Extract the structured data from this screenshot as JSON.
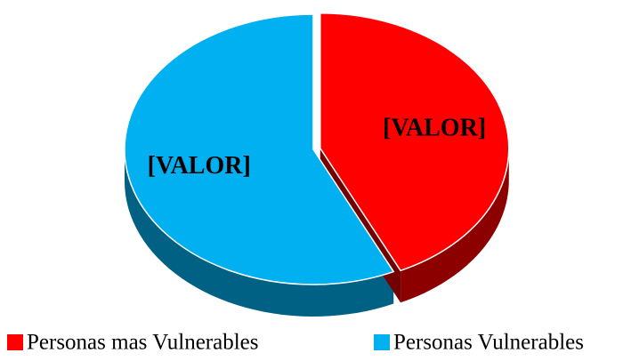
{
  "chart_data": {
    "type": "pie",
    "three_d": true,
    "categories": [
      "Personas mas Vulnerables",
      "Personas Vulnerables"
    ],
    "values": [
      43,
      57
    ],
    "value_labels": [
      "[VALOR]",
      "[VALOR]"
    ],
    "colors": [
      "#ff0000",
      "#00b0f0"
    ],
    "legend": "bottom"
  }
}
